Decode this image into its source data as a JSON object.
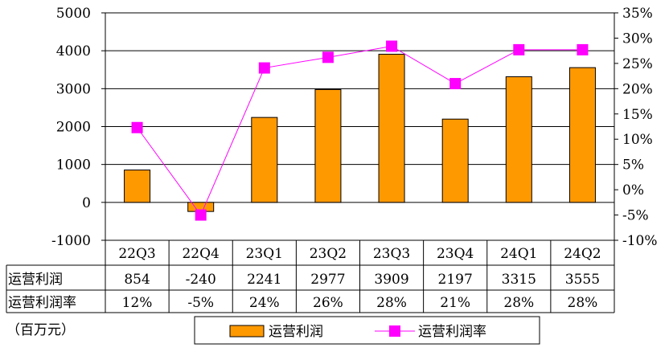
{
  "chart_data": {
    "type": "bar",
    "categories": [
      "22Q3",
      "22Q4",
      "23Q1",
      "23Q2",
      "23Q3",
      "23Q4",
      "24Q1",
      "24Q2"
    ],
    "series": [
      {
        "name": "运营利润",
        "type": "bar",
        "axis": "left",
        "color": "#ff9900",
        "values": [
          854,
          -240,
          2241,
          2977,
          3909,
          2197,
          3315,
          3555
        ]
      },
      {
        "name": "运营利润率",
        "type": "line",
        "axis": "right",
        "color": "#ff00ff",
        "values": [
          12.3,
          -5,
          24.1,
          26.2,
          28.4,
          21,
          27.7,
          27.7
        ]
      }
    ],
    "y_left": {
      "min": -1000,
      "max": 5000,
      "ticks": [
        "-1000",
        "0",
        "1000",
        "2000",
        "3000",
        "4000",
        "5000"
      ]
    },
    "y_right": {
      "min": -10,
      "max": 35,
      "ticks": [
        "-10%",
        "-5%",
        "0%",
        "5%",
        "10%",
        "15%",
        "20%",
        "25%",
        "30%",
        "35%"
      ]
    },
    "grid": "horizontal",
    "legend_position": "bottom",
    "unit_note": "（百万元）",
    "table": {
      "rows": [
        {
          "label": "运营利润",
          "cells": [
            "854",
            "-240",
            "2241",
            "2977",
            "3909",
            "2197",
            "3315",
            "3555"
          ]
        },
        {
          "label": "运营利润率",
          "cells": [
            "12%",
            "-5%",
            "24%",
            "26%",
            "28%",
            "21%",
            "28%",
            "28%"
          ]
        }
      ]
    }
  }
}
